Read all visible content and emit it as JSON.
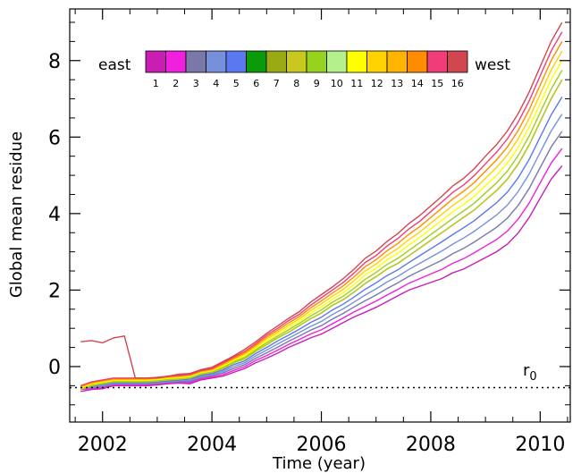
{
  "chart_data": {
    "type": "line",
    "title": "",
    "xlabel": "Time (year)",
    "ylabel": "Global mean residue",
    "xlim": [
      2001.4,
      2010.55
    ],
    "ylim": [
      -1.45,
      9.35
    ],
    "xticks": [
      2002,
      2004,
      2006,
      2008,
      2010
    ],
    "xtick_labels": [
      "2002",
      "2004",
      "2006",
      "2008",
      "2010"
    ],
    "yticks": [
      0,
      2,
      4,
      6,
      8
    ],
    "ytick_labels": [
      "0",
      "2",
      "4",
      "6",
      "8"
    ],
    "grid": false,
    "reference_line": {
      "label": "r",
      "label_sub": "0",
      "y": -0.55,
      "style": "dotted"
    },
    "colorbar": {
      "left_label": "east",
      "right_label": "west",
      "labels": [
        "1",
        "2",
        "3",
        "4",
        "5",
        "6",
        "7",
        "8",
        "9",
        "10",
        "11",
        "12",
        "13",
        "14",
        "15",
        "16"
      ],
      "colors": [
        "#c81eb4",
        "#f020dc",
        "#7a78a8",
        "#7890dc",
        "#5a78f0",
        "#0a9a0a",
        "#9aaa14",
        "#c8c81e",
        "#96d21e",
        "#b4f08c",
        "#ffff00",
        "#ffd200",
        "#ffb400",
        "#ff8c00",
        "#f03c78",
        "#d24650"
      ]
    },
    "x": [
      2001.6,
      2001.8,
      2002.0,
      2002.2,
      2002.4,
      2002.6,
      2002.8,
      2003.0,
      2003.2,
      2003.4,
      2003.6,
      2003.8,
      2004.0,
      2004.2,
      2004.4,
      2004.6,
      2004.8,
      2005.0,
      2005.2,
      2005.4,
      2005.6,
      2005.8,
      2006.0,
      2006.2,
      2006.4,
      2006.6,
      2006.8,
      2007.0,
      2007.2,
      2007.4,
      2007.6,
      2007.8,
      2008.0,
      2008.2,
      2008.4,
      2008.6,
      2008.8,
      2009.0,
      2009.2,
      2009.4,
      2009.6,
      2009.8,
      2010.0,
      2010.2,
      2010.4
    ],
    "series": [
      {
        "values": [
          -0.65,
          -0.6,
          -0.58,
          -0.5,
          -0.5,
          -0.5,
          -0.5,
          -0.48,
          -0.45,
          -0.43,
          -0.45,
          -0.35,
          -0.3,
          -0.25,
          -0.15,
          -0.05,
          0.1,
          0.22,
          0.35,
          0.5,
          0.62,
          0.75,
          0.85,
          1.0,
          1.15,
          1.3,
          1.42,
          1.55,
          1.7,
          1.85,
          2.0,
          2.1,
          2.2,
          2.3,
          2.45,
          2.55,
          2.7,
          2.85,
          3.0,
          3.2,
          3.5,
          3.9,
          4.4,
          4.9,
          5.25
        ]
      },
      {
        "values": [
          -0.6,
          -0.58,
          -0.55,
          -0.48,
          -0.48,
          -0.48,
          -0.48,
          -0.46,
          -0.43,
          -0.41,
          -0.42,
          -0.32,
          -0.27,
          -0.21,
          -0.1,
          0.0,
          0.16,
          0.29,
          0.43,
          0.58,
          0.71,
          0.85,
          0.96,
          1.12,
          1.27,
          1.43,
          1.57,
          1.71,
          1.87,
          2.02,
          2.18,
          2.3,
          2.42,
          2.54,
          2.7,
          2.82,
          2.98,
          3.15,
          3.32,
          3.54,
          3.86,
          4.28,
          4.8,
          5.32,
          5.7
        ]
      },
      {
        "values": [
          -0.55,
          -0.56,
          -0.52,
          -0.46,
          -0.46,
          -0.46,
          -0.46,
          -0.44,
          -0.41,
          -0.39,
          -0.39,
          -0.29,
          -0.24,
          -0.17,
          -0.05,
          0.05,
          0.22,
          0.36,
          0.51,
          0.66,
          0.8,
          0.95,
          1.07,
          1.24,
          1.39,
          1.56,
          1.72,
          1.87,
          2.04,
          2.19,
          2.36,
          2.5,
          2.64,
          2.78,
          2.95,
          3.09,
          3.26,
          3.45,
          3.64,
          3.88,
          4.22,
          4.66,
          5.2,
          5.74,
          6.15
        ]
      },
      {
        "values": [
          -0.6,
          -0.54,
          -0.5,
          -0.44,
          -0.44,
          -0.44,
          -0.44,
          -0.42,
          -0.39,
          -0.37,
          -0.36,
          -0.26,
          -0.21,
          -0.13,
          0.0,
          0.1,
          0.28,
          0.43,
          0.59,
          0.74,
          0.89,
          1.05,
          1.18,
          1.36,
          1.51,
          1.69,
          1.87,
          2.03,
          2.21,
          2.36,
          2.54,
          2.7,
          2.86,
          3.02,
          3.2,
          3.36,
          3.54,
          3.75,
          3.96,
          4.22,
          4.58,
          5.04,
          5.6,
          6.16,
          6.6
        ]
      },
      {
        "values": [
          -0.55,
          -0.52,
          -0.47,
          -0.42,
          -0.42,
          -0.42,
          -0.42,
          -0.4,
          -0.37,
          -0.35,
          -0.33,
          -0.23,
          -0.18,
          -0.09,
          0.05,
          0.15,
          0.34,
          0.5,
          0.67,
          0.82,
          0.98,
          1.15,
          1.29,
          1.48,
          1.63,
          1.82,
          2.02,
          2.19,
          2.38,
          2.53,
          2.72,
          2.9,
          3.08,
          3.26,
          3.45,
          3.63,
          3.82,
          4.05,
          4.28,
          4.56,
          4.94,
          5.42,
          6.0,
          6.58,
          7.05
        ]
      },
      {
        "values": [
          -0.6,
          -0.5,
          -0.45,
          -0.4,
          -0.4,
          -0.4,
          -0.4,
          -0.38,
          -0.35,
          -0.33,
          -0.3,
          -0.2,
          -0.15,
          -0.05,
          0.1,
          0.2,
          0.4,
          0.57,
          0.75,
          0.9,
          1.07,
          1.25,
          1.4,
          1.6,
          1.75,
          1.95,
          2.17,
          2.35,
          2.55,
          2.7,
          2.9,
          3.1,
          3.3,
          3.5,
          3.7,
          3.9,
          4.1,
          4.35,
          4.6,
          4.9,
          5.3,
          5.8,
          6.4,
          7.0,
          7.5
        ]
      },
      {
        "values": [
          -0.6,
          -0.5,
          -0.45,
          -0.4,
          -0.4,
          -0.4,
          -0.4,
          -0.38,
          -0.35,
          -0.33,
          -0.3,
          -0.2,
          -0.15,
          -0.05,
          0.1,
          0.2,
          0.4,
          0.57,
          0.75,
          0.9,
          1.07,
          1.25,
          1.4,
          1.6,
          1.75,
          1.95,
          2.17,
          2.35,
          2.55,
          2.7,
          2.9,
          3.1,
          3.3,
          3.5,
          3.7,
          3.9,
          4.1,
          4.35,
          4.6,
          4.9,
          5.3,
          5.8,
          6.4,
          7.0,
          7.5
        ]
      },
      {
        "values": [
          -0.58,
          -0.48,
          -0.43,
          -0.38,
          -0.38,
          -0.38,
          -0.38,
          -0.36,
          -0.33,
          -0.31,
          -0.28,
          -0.18,
          -0.13,
          -0.02,
          0.13,
          0.24,
          0.44,
          0.62,
          0.8,
          0.96,
          1.13,
          1.32,
          1.48,
          1.68,
          1.84,
          2.05,
          2.28,
          2.46,
          2.67,
          2.83,
          3.04,
          3.24,
          3.45,
          3.66,
          3.87,
          4.07,
          4.28,
          4.54,
          4.8,
          5.11,
          5.52,
          6.03,
          6.64,
          7.25,
          7.75
        ]
      },
      {
        "values": [
          -0.56,
          -0.46,
          -0.41,
          -0.36,
          -0.36,
          -0.36,
          -0.36,
          -0.34,
          -0.31,
          -0.29,
          -0.26,
          -0.16,
          -0.11,
          0.01,
          0.16,
          0.28,
          0.48,
          0.67,
          0.85,
          1.02,
          1.19,
          1.39,
          1.56,
          1.76,
          1.93,
          2.15,
          2.39,
          2.57,
          2.79,
          2.96,
          3.18,
          3.38,
          3.6,
          3.82,
          4.04,
          4.24,
          4.46,
          4.73,
          5.0,
          5.32,
          5.74,
          6.26,
          6.88,
          7.5,
          8.0
        ]
      },
      {
        "values": [
          -0.54,
          -0.44,
          -0.39,
          -0.34,
          -0.34,
          -0.34,
          -0.34,
          -0.32,
          -0.29,
          -0.27,
          -0.24,
          -0.14,
          -0.09,
          0.04,
          0.19,
          0.32,
          0.52,
          0.72,
          0.9,
          1.08,
          1.25,
          1.46,
          1.64,
          1.84,
          2.02,
          2.25,
          2.5,
          2.68,
          2.91,
          3.09,
          3.32,
          3.52,
          3.75,
          3.98,
          4.21,
          4.41,
          4.64,
          4.92,
          5.2,
          5.53,
          5.96,
          6.49,
          7.12,
          7.75,
          8.25
        ]
      },
      {
        "values": [
          -0.52,
          -0.42,
          -0.37,
          -0.32,
          -0.32,
          -0.32,
          -0.32,
          -0.3,
          -0.27,
          -0.25,
          -0.22,
          -0.12,
          -0.07,
          0.07,
          0.22,
          0.36,
          0.56,
          0.77,
          0.95,
          1.14,
          1.31,
          1.53,
          1.72,
          1.92,
          2.11,
          2.35,
          2.61,
          2.79,
          3.03,
          3.22,
          3.46,
          3.66,
          3.9,
          4.14,
          4.38,
          4.58,
          4.82,
          5.11,
          5.4,
          5.74,
          6.18,
          6.72,
          7.36,
          8.0,
          8.5
        ]
      },
      {
        "values": [
          -0.5,
          -0.4,
          -0.35,
          -0.3,
          -0.3,
          -0.3,
          -0.3,
          -0.28,
          -0.25,
          -0.23,
          -0.2,
          -0.1,
          -0.05,
          0.1,
          0.25,
          0.4,
          0.6,
          0.82,
          1.0,
          1.2,
          1.37,
          1.6,
          1.8,
          2.0,
          2.2,
          2.45,
          2.72,
          2.9,
          3.15,
          3.35,
          3.6,
          3.8,
          4.05,
          4.3,
          4.55,
          4.75,
          5.0,
          5.3,
          5.6,
          5.95,
          6.4,
          6.95,
          7.6,
          8.25,
          8.75
        ]
      }
    ],
    "x_east": [
      2001.6,
      2001.8,
      2002.0,
      2002.2,
      2002.4,
      2002.6,
      2002.8,
      2003.0,
      2003.2,
      2003.4,
      2003.6,
      2003.8,
      2004.0,
      2004.2,
      2004.4,
      2004.6,
      2004.8,
      2005.0,
      2005.2,
      2005.4,
      2005.6,
      2005.8,
      2006.0,
      2006.2,
      2006.4,
      2006.6,
      2006.8,
      2007.0,
      2007.2,
      2007.4,
      2007.6,
      2007.8,
      2008.0,
      2008.2,
      2008.4,
      2008.6,
      2008.8,
      2009.0,
      2009.2,
      2009.4,
      2009.6,
      2009.8,
      2010.0,
      2010.2,
      2010.4
    ],
    "series_16": {
      "values": [
        0.65,
        0.68,
        0.62,
        0.75,
        0.8,
        -0.3,
        -0.3,
        -0.3,
        -0.25,
        -0.2,
        -0.18,
        -0.08,
        -0.02,
        0.13,
        0.28,
        0.45,
        0.65,
        0.87,
        1.06,
        1.26,
        1.44,
        1.68,
        1.88,
        2.08,
        2.3,
        2.55,
        2.83,
        3.02,
        3.27,
        3.48,
        3.74,
        3.95,
        4.2,
        4.45,
        4.72,
        4.92,
        5.18,
        5.5,
        5.8,
        6.16,
        6.62,
        7.18,
        7.84,
        8.5,
        9.0
      ]
    }
  }
}
